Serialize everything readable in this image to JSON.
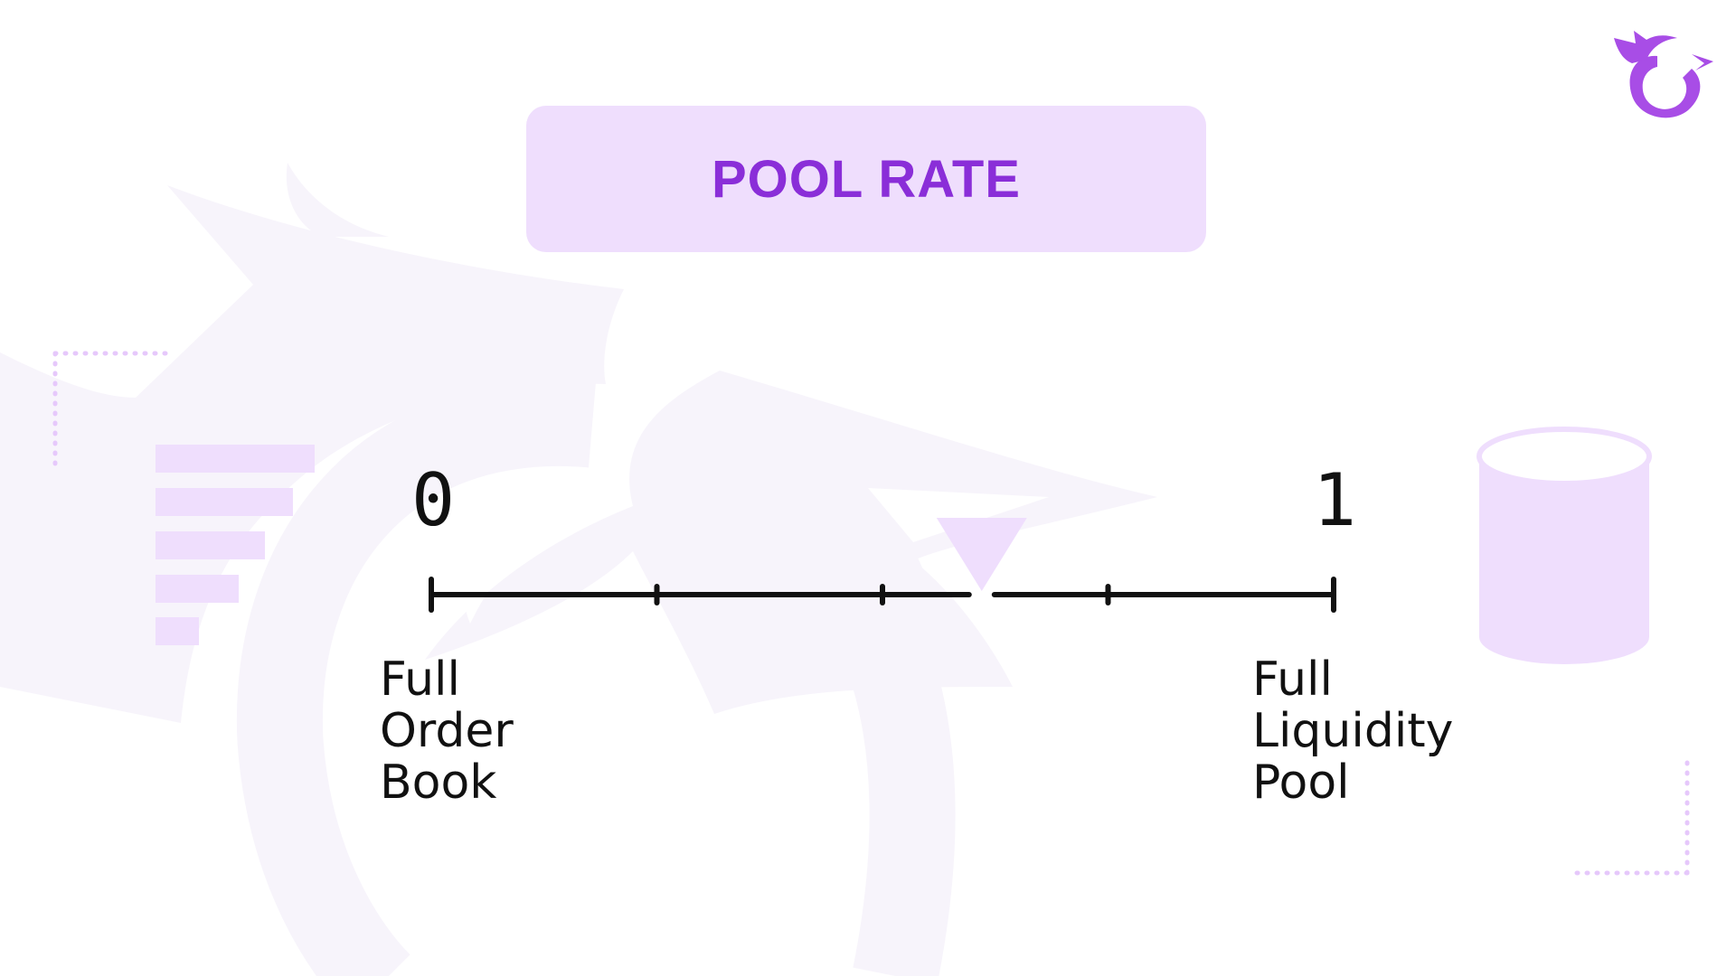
{
  "title": "POOL RATE",
  "scale": {
    "min_label": "0",
    "max_label": "1",
    "left_caption": "Full\nOrder\nBook",
    "right_caption": "Full\nLiquidity\nPool",
    "marker_value": 0.61,
    "tick_values": [
      0,
      0.25,
      0.5,
      0.75,
      1
    ]
  },
  "icons": {
    "order_book": "order-book-bars-icon",
    "liquidity_pool": "liquidity-cylinder-icon",
    "brand_logo": "dragon-logo-icon",
    "marker": "triangle-marker-icon"
  },
  "colors": {
    "accent": "#8a2ed8",
    "title_bg": "#efdefd",
    "light_purple": "#efdefd",
    "line": "#111111",
    "logo": "#a84de6"
  }
}
